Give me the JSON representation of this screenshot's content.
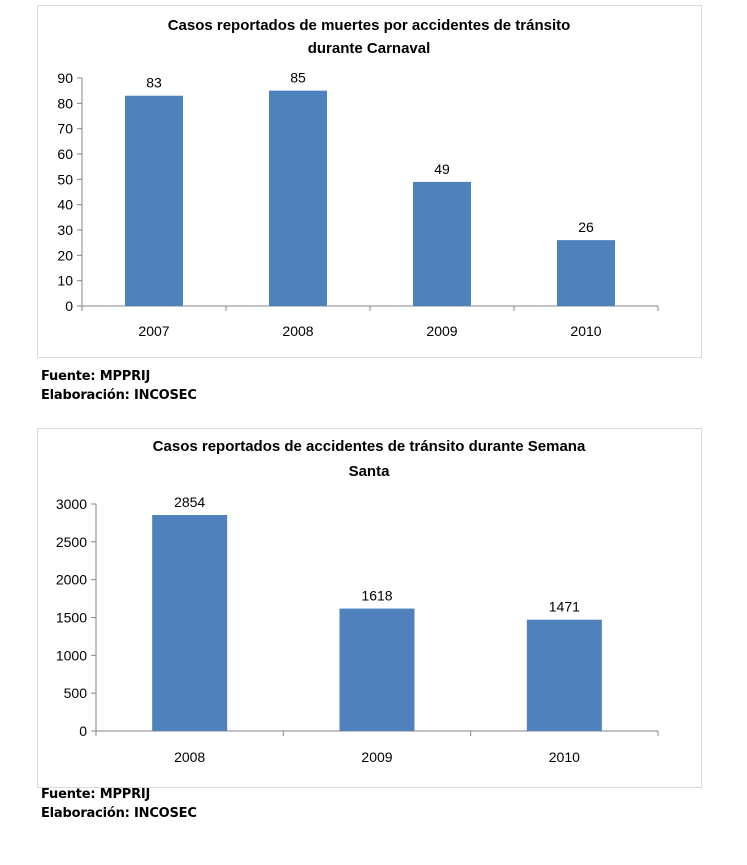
{
  "chart_data": [
    {
      "type": "bar",
      "title_lines": [
        "Casos reportados de muertes por accidentes de tránsito",
        "durante Carnaval"
      ],
      "categories": [
        "2007",
        "2008",
        "2009",
        "2010"
      ],
      "values": [
        83,
        85,
        49,
        26
      ],
      "data_labels": [
        "83",
        "85",
        "49",
        "26"
      ],
      "ylim": [
        0,
        90
      ],
      "yticks": [
        "0",
        "10",
        "20",
        "30",
        "40",
        "50",
        "60",
        "70",
        "80",
        "90"
      ],
      "bar_color": "#4f81bd",
      "grid": false,
      "legend": "none"
    },
    {
      "type": "bar",
      "title_lines": [
        "Casos reportados de accidentes de tránsito durante  Semana",
        "Santa"
      ],
      "categories": [
        "2008",
        "2009",
        "2010"
      ],
      "values": [
        2854,
        1618,
        1471
      ],
      "data_labels": [
        "2854",
        "1618",
        "1471"
      ],
      "ylim": [
        0,
        3000
      ],
      "yticks": [
        "0",
        "500",
        "1000",
        "1500",
        "2000",
        "2500",
        "3000"
      ],
      "bar_color": "#4f81bd",
      "grid": false,
      "legend": "none"
    }
  ],
  "notes": [
    {
      "source": "Fuente: MPPRIJ",
      "elaboration": "Elaboración: INCOSEC"
    },
    {
      "source": "Fuente: MPPRIJ",
      "elaboration": "Elaboración: INCOSEC"
    }
  ]
}
